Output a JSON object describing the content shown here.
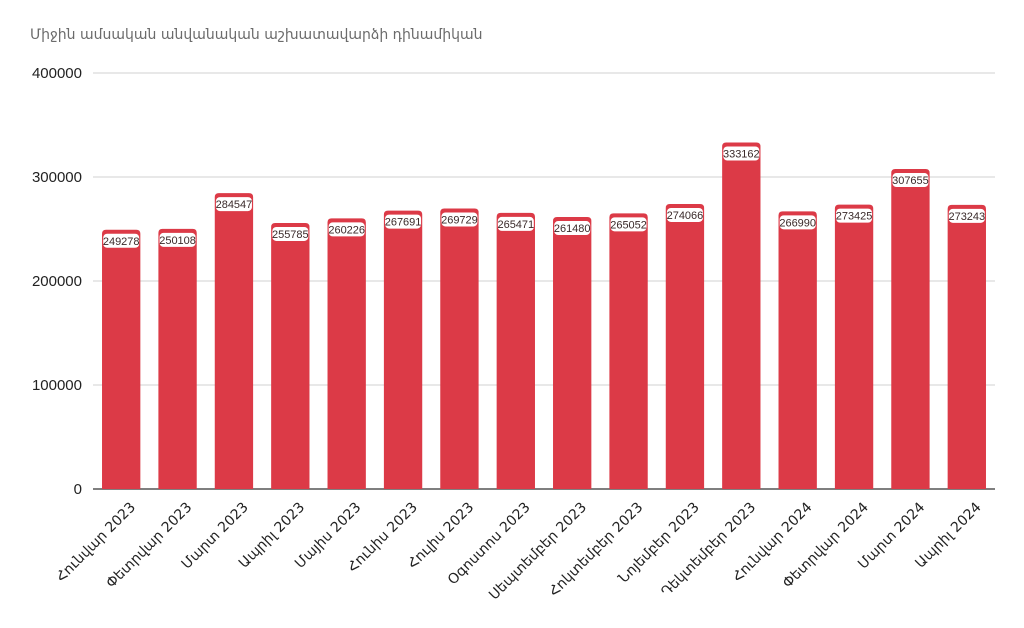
{
  "chart_data": {
    "type": "bar",
    "title": "Միջին ամսական անվանական աշխատավարձի դինամիկան",
    "xlabel": "",
    "ylabel": "",
    "ylim": [
      0,
      400000
    ],
    "yticks": [
      "0",
      "100000",
      "200000",
      "300000",
      "400000"
    ],
    "grid": true,
    "bar_color": "#dc3a47",
    "categories": [
      "Հունվար 2023",
      "Փետրվար 2023",
      "Մարտ 2023",
      "Ապրիլ 2023",
      "Մայիս 2023",
      "Հունիս 2023",
      "Հուլիս 2023",
      "Օգոստոս 2023",
      "Սեպտեմբեր 2023",
      "Հոկտեմբեր 2023",
      "Նոյեմբեր 2023",
      "Դեկտեմբեր 2023",
      "Հունվար 2024",
      "Փետրվար 2024",
      "Մարտ 2024",
      "Ապրիլ 2024"
    ],
    "values": [
      249278,
      250108,
      284547,
      255785,
      260226,
      267691,
      269729,
      265471,
      261480,
      265052,
      274066,
      333162,
      266990,
      273425,
      307655,
      273243
    ],
    "data_labels": [
      "249278",
      "250108",
      "284547",
      "255785",
      "260226",
      "267691",
      "269729",
      "265471",
      "261480",
      "265052",
      "274066",
      "333162",
      "266990",
      "273425",
      "307655",
      "273243"
    ]
  }
}
